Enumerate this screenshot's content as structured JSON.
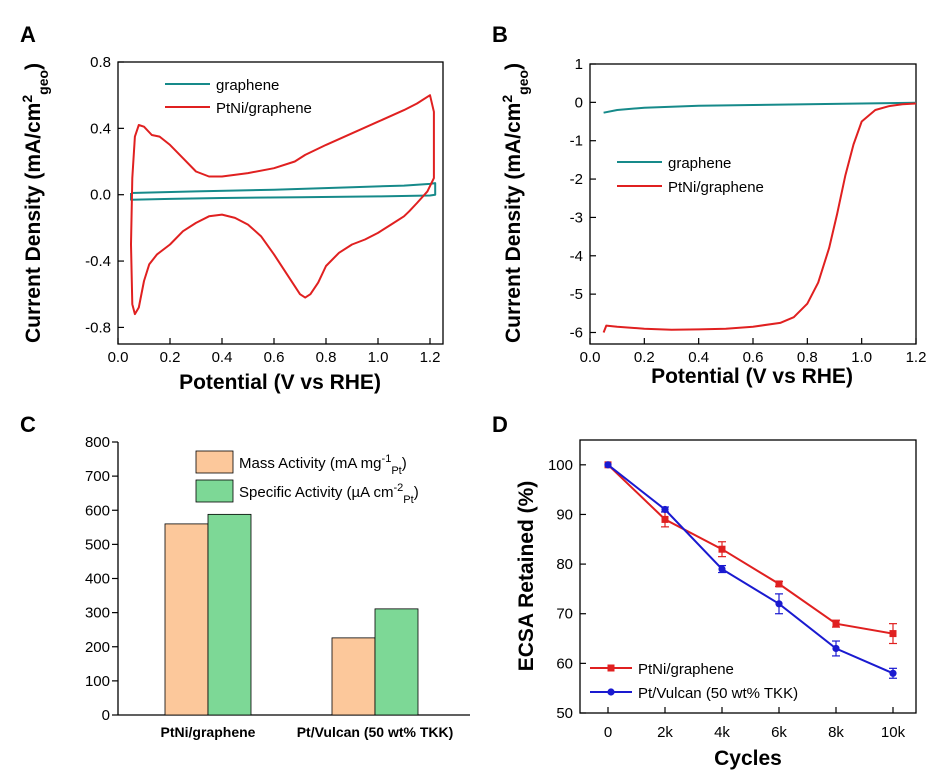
{
  "chart_data": [
    {
      "panel": "A",
      "type": "line",
      "title": "",
      "xlabel": "Potential (V vs RHE)",
      "ylabel": "Current Density (mA/cm",
      "ylabel_sup": "2",
      "ylabel_sub": "geo",
      "ylabel_end": ")",
      "xlim": [
        0,
        1.25
      ],
      "ylim": [
        -0.9,
        0.8
      ],
      "xticks": [
        "0.0",
        "0.2",
        "0.4",
        "0.6",
        "0.8",
        "1.0",
        "1.2"
      ],
      "yticks": [
        "-0.8",
        "-0.4",
        "0.0",
        "0.4",
        "0.8"
      ],
      "legend_position": "top-left",
      "series": [
        {
          "name": "graphene",
          "color": "#168a8a",
          "x": [
            0.05,
            0.3,
            0.6,
            0.9,
            1.1,
            1.2,
            1.22,
            1.22,
            1.2,
            1.0,
            0.7,
            0.4,
            0.2,
            0.05,
            0.05
          ],
          "y": [
            0.01,
            0.02,
            0.03,
            0.045,
            0.055,
            0.065,
            0.07,
            0.0,
            -0.005,
            -0.01,
            -0.015,
            -0.02,
            -0.025,
            -0.03,
            0.01
          ]
        },
        {
          "name": "PtNi/graphene",
          "color": "#e02020",
          "x": [
            0.05,
            0.055,
            0.065,
            0.08,
            0.1,
            0.13,
            0.16,
            0.2,
            0.25,
            0.3,
            0.35,
            0.4,
            0.5,
            0.6,
            0.68,
            0.72,
            0.8,
            0.9,
            1.0,
            1.1,
            1.15,
            1.2,
            1.215,
            1.215,
            1.19,
            1.15,
            1.12,
            1.1,
            1.05,
            1.0,
            0.95,
            0.9,
            0.85,
            0.8,
            0.77,
            0.74,
            0.72,
            0.7,
            0.65,
            0.6,
            0.55,
            0.5,
            0.45,
            0.4,
            0.35,
            0.3,
            0.25,
            0.2,
            0.15,
            0.12,
            0.1,
            0.08,
            0.065,
            0.055,
            0.05
          ],
          "y": [
            -0.3,
            0.1,
            0.35,
            0.42,
            0.41,
            0.36,
            0.35,
            0.3,
            0.22,
            0.14,
            0.11,
            0.11,
            0.13,
            0.16,
            0.2,
            0.24,
            0.3,
            0.37,
            0.44,
            0.51,
            0.55,
            0.6,
            0.5,
            0.1,
            0.02,
            -0.05,
            -0.1,
            -0.13,
            -0.18,
            -0.23,
            -0.27,
            -0.3,
            -0.35,
            -0.43,
            -0.53,
            -0.6,
            -0.62,
            -0.6,
            -0.48,
            -0.36,
            -0.25,
            -0.18,
            -0.14,
            -0.12,
            -0.13,
            -0.17,
            -0.22,
            -0.3,
            -0.36,
            -0.42,
            -0.52,
            -0.68,
            -0.72,
            -0.66,
            -0.3
          ]
        }
      ]
    },
    {
      "panel": "B",
      "type": "line",
      "title": "",
      "xlabel": "Potential (V vs RHE)",
      "ylabel": "Current Density (mA/cm",
      "ylabel_sup": "2",
      "ylabel_sub": "geo",
      "ylabel_end": ")",
      "xlim": [
        0,
        1.2
      ],
      "ylim": [
        -6.3,
        1
      ],
      "xticks": [
        "0.0",
        "0.2",
        "0.4",
        "0.6",
        "0.8",
        "1.0",
        "1.2"
      ],
      "yticks": [
        "1",
        "0",
        "-1",
        "-2",
        "-3",
        "-4",
        "-5",
        "-6"
      ],
      "legend_position": "center-left",
      "series": [
        {
          "name": "graphene",
          "color": "#168a8a",
          "x": [
            0.05,
            0.1,
            0.2,
            0.4,
            0.6,
            0.8,
            1.0,
            1.2
          ],
          "y": [
            -0.27,
            -0.2,
            -0.14,
            -0.09,
            -0.07,
            -0.05,
            -0.03,
            -0.01
          ]
        },
        {
          "name": "PtNi/graphene",
          "color": "#e02020",
          "x": [
            0.05,
            0.06,
            0.1,
            0.2,
            0.3,
            0.4,
            0.5,
            0.6,
            0.7,
            0.75,
            0.8,
            0.84,
            0.88,
            0.91,
            0.94,
            0.97,
            1.0,
            1.05,
            1.1,
            1.15,
            1.2
          ],
          "y": [
            -6.0,
            -5.82,
            -5.85,
            -5.9,
            -5.93,
            -5.92,
            -5.9,
            -5.85,
            -5.75,
            -5.6,
            -5.25,
            -4.7,
            -3.8,
            -2.9,
            -1.9,
            -1.1,
            -0.5,
            -0.2,
            -0.1,
            -0.05,
            -0.03
          ]
        }
      ]
    },
    {
      "panel": "C",
      "type": "bar",
      "title": "",
      "xlabel": "",
      "ylabel": "",
      "ylim": [
        0,
        800
      ],
      "yticks": [
        "0",
        "100",
        "200",
        "300",
        "400",
        "500",
        "600",
        "700",
        "800"
      ],
      "categories": [
        "PtNi/graphene",
        "Pt/Vulcan (50 wt% TKK)"
      ],
      "legend_position": "top-right",
      "series": [
        {
          "name": "Mass Activity (mA mg",
          "name_sup": "-1",
          "name_sub": "Pt",
          "name_end": ")",
          "color": "#fcc89b",
          "values": [
            560,
            226
          ]
        },
        {
          "name": "Specific Activity (µA cm",
          "name_sup": "-2",
          "name_sub": "Pt",
          "name_end": ")",
          "color": "#7dd896",
          "values": [
            588,
            311
          ]
        }
      ]
    },
    {
      "panel": "D",
      "type": "line",
      "title": "",
      "xlabel": "Cycles",
      "ylabel": "ECSA Retained (%)",
      "ylim": [
        50,
        105
      ],
      "categories": [
        "0",
        "2k",
        "4k",
        "6k",
        "8k",
        "10k"
      ],
      "yticks": [
        "50",
        "60",
        "70",
        "80",
        "90",
        "100"
      ],
      "legend_position": "bottom-left",
      "series": [
        {
          "name": "PtNi/graphene",
          "color": "#e02020",
          "marker": "square",
          "values": [
            100,
            89,
            83,
            76,
            68,
            66
          ],
          "errors": [
            0,
            1.5,
            1.5,
            0.5,
            0.7,
            2
          ]
        },
        {
          "name": "Pt/Vulcan (50 wt% TKK)",
          "color": "#1a1ad0",
          "marker": "circle",
          "values": [
            100,
            91,
            79,
            72,
            63,
            58
          ],
          "errors": [
            0,
            0.5,
            0.7,
            2,
            1.5,
            1
          ]
        }
      ]
    }
  ],
  "panel_labels": [
    "A",
    "B",
    "C",
    "D"
  ]
}
